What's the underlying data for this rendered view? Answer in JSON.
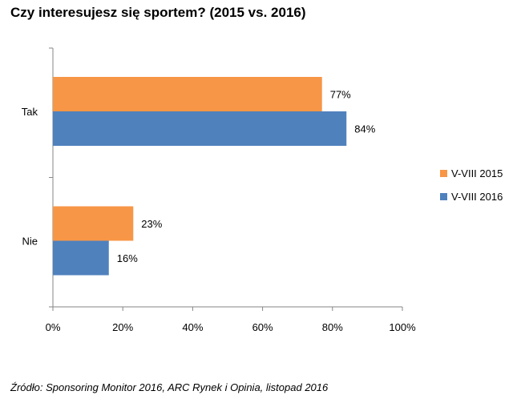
{
  "title": "Czy interesujesz się sportem? (2015 vs. 2016)",
  "source": "Źródło: Sponsoring Monitor 2016, ARC Rynek i Opinia, listopad 2016",
  "chart_data": {
    "type": "bar",
    "orientation": "horizontal",
    "categories": [
      "Tak",
      "Nie"
    ],
    "series": [
      {
        "name": "V-VIII 2015",
        "values": [
          77,
          23
        ],
        "labels": [
          "77%",
          "23%"
        ],
        "color": "#F79646"
      },
      {
        "name": "V-VIII 2016",
        "values": [
          84,
          16
        ],
        "labels": [
          "84%",
          "16%"
        ],
        "color": "#4F81BD"
      }
    ],
    "xlim": [
      0,
      100
    ],
    "x_ticks": [
      "0%",
      "20%",
      "40%",
      "60%",
      "80%",
      "100%"
    ],
    "x_tick_values": [
      0,
      20,
      40,
      60,
      80,
      100
    ],
    "grid": false,
    "legend_position": "right"
  }
}
